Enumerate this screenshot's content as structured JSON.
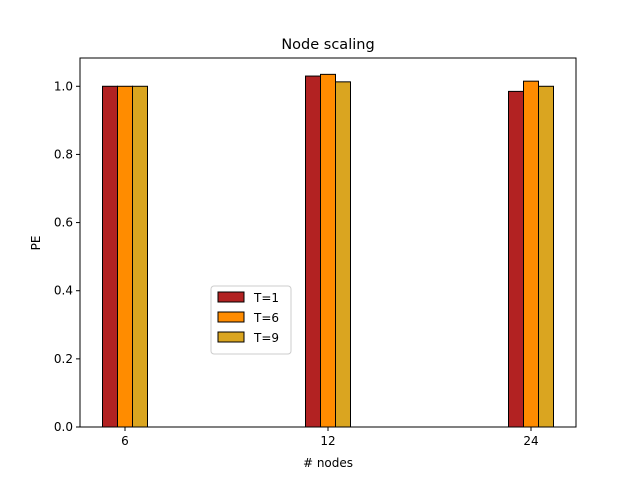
{
  "chart_data": {
    "type": "bar",
    "title": "Node scaling",
    "xlabel": "# nodes",
    "ylabel": "PE",
    "categories": [
      "6",
      "12",
      "24"
    ],
    "series": [
      {
        "name": "T=1",
        "color": "#b22222",
        "values": [
          1.0,
          1.03,
          0.985
        ]
      },
      {
        "name": "T=6",
        "color": "#ff8c00",
        "values": [
          1.0,
          1.035,
          1.015
        ]
      },
      {
        "name": "T=9",
        "color": "#daa520",
        "values": [
          1.0,
          1.013,
          1.0
        ]
      }
    ],
    "ylim": [
      0,
      1.083
    ],
    "yticks": [
      "0.0",
      "0.2",
      "0.4",
      "0.6",
      "0.8",
      "1.0"
    ],
    "legend": "center-left",
    "grid": false
  }
}
